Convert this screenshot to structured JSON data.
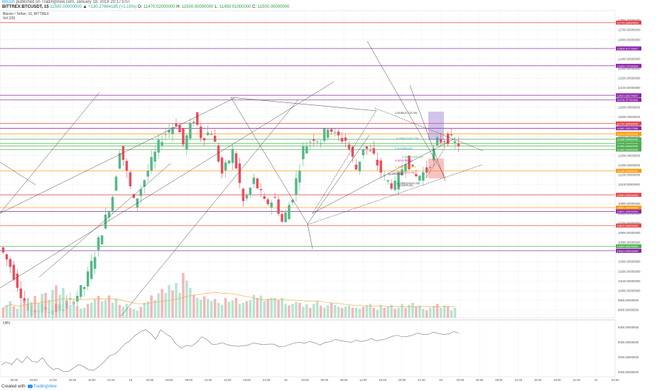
{
  "header": {
    "author": "Bitcoin",
    "published_text": "published on",
    "site": "TradingView.com",
    "date_text": ", January 19, 2018 20:17 EST",
    "symbol": "BITTREX:BTCUSDT, 15",
    "last_price": "11500.00000000",
    "change": "+130.27664185 (+1.15%)",
    "o": "11470.02000000",
    "h": "11500.00000000",
    "l": "11450.01000000",
    "c": "11500.00000000"
  },
  "legend": {
    "line1": "Bitcoin / Tether, 15, BITTREX",
    "line2": "Vol (20)"
  },
  "obv_label": "OBV",
  "footer": {
    "created_with": "Created with",
    "brand": "TradingView"
  },
  "colors": {
    "red": "#e5464a",
    "green": "#4caf50",
    "purple": "#8e24aa",
    "orange": "#ff9800",
    "grid": "#eeeeee"
  },
  "chart_data": [
    {
      "type": "candlestick",
      "title": "Bitcoin / Tether, 15, BITTREX",
      "ylim": [
        9720,
        12900
      ],
      "y_ticks": [
        "12800.00000000",
        "12700.00000000",
        "12600.00000000",
        "12500.00000000",
        "12400.00000000",
        "12300.00000000",
        "12200.00000000",
        "12100.00000000",
        "12000.00000000",
        "11900.00000000",
        "11800.00000000",
        "11700.00000000",
        "11600.00000000",
        "11500.00000000",
        "11400.00000000",
        "11300.00000000",
        "11200.00000000",
        "11100.00000000",
        "11000.00000000",
        "10900.00000000",
        "10800.00000000",
        "10700.00000000",
        "10600.00000000",
        "10500.00000000",
        "10400.00000000",
        "10300.00000000",
        "10200.00000000",
        "10100.00000000",
        "10000.00000000",
        "9900.00000000",
        "9800.00000000"
      ],
      "x_ticks": [
        "06:00",
        "09:00",
        "12:00",
        "15:00",
        "18:00",
        "21:00",
        "18",
        "03:00",
        "06:00",
        "09:00",
        "12:00",
        "15:00",
        "18:00",
        "21:00",
        "19",
        "03:00",
        "06:00",
        "09:00",
        "12:00",
        "15:00",
        "18:00",
        "21:00",
        "20",
        "03:00",
        "06:00",
        "09:00",
        "12:00",
        "15:00",
        "18:00",
        "21:00",
        "21",
        "03:00"
      ],
      "price_levels": [
        {
          "label": "12776.33684993",
          "value": 12776.34,
          "color": "#e5464a"
        },
        {
          "label": "12508.91775907",
          "value": 12508.92,
          "color": "#8e24aa"
        },
        {
          "label": "12328.73796393",
          "value": 12328.74,
          "color": "#8e24aa"
        },
        {
          "label": "12023.40279007",
          "value": 12023.4,
          "color": "#8e24aa"
        },
        {
          "label": "11976.37700304",
          "value": 11976.38,
          "color": "#8e24aa"
        },
        {
          "label": "11732.00000000",
          "value": 11732.0,
          "color": "#e5464a"
        },
        {
          "label": "11682.28317968",
          "value": 11682.28,
          "color": "#8e24aa"
        },
        {
          "label": "11625.00000000",
          "value": 11625.0,
          "color": "#ff9800"
        },
        {
          "label": "11568.00000000",
          "value": 11568.0,
          "color": "#4caf50"
        },
        {
          "label": "11525.00000000",
          "value": 11525.0,
          "color": "#4caf50"
        },
        {
          "label": "11500.00000000",
          "value": 11500.0,
          "color": "#4caf50"
        },
        {
          "label": "11462.00000000",
          "value": 11462.0,
          "color": "#4caf50"
        },
        {
          "label": "11242.00000000",
          "value": 11242.0,
          "color": "#ff9800"
        },
        {
          "label": "10993.00000000",
          "value": 10993.0,
          "color": "#e5464a"
        },
        {
          "label": "10861.00000000",
          "value": 10861.0,
          "color": "#ff9800"
        },
        {
          "label": "10821.00000000",
          "value": 10821.0,
          "color": "#8e24aa"
        },
        {
          "label": "10675.00000000",
          "value": 10675.0,
          "color": "#e5464a"
        },
        {
          "label": "10460.00000000",
          "value": 10460.0,
          "color": "#4caf50"
        },
        {
          "label": "10414.00000000",
          "value": 10414.0,
          "color": "#8e24aa"
        }
      ],
      "fib_labels": [
        "1.6180(11712.00)",
        "0.7860(11472.00)",
        "0.5(11389.00)",
        "0.382(11325.00)",
        "0.5(11278.00)",
        "0.382(11240.00)",
        "0(10993.00)",
        "-0.2360(11201.00)",
        "-0.2360(11101.00)",
        "0(10993.00)"
      ]
    },
    {
      "type": "bar",
      "title": "Vol (20)",
      "values": [
        20,
        26,
        33,
        23,
        18,
        24,
        35,
        40,
        31,
        44,
        29,
        48,
        50,
        36,
        56,
        65,
        46,
        60,
        36,
        26,
        32,
        23,
        18,
        20,
        28,
        30,
        38,
        44,
        33,
        36,
        45,
        30,
        39,
        26,
        22,
        28,
        20,
        17,
        14,
        22,
        30,
        33,
        45,
        36,
        49,
        58,
        50,
        66,
        55,
        70,
        50,
        90,
        75,
        60,
        46,
        40,
        36,
        43,
        38,
        34,
        38,
        30,
        26,
        40,
        32,
        35,
        40,
        28,
        30,
        33,
        36,
        46,
        40,
        45,
        34,
        38,
        40,
        40,
        35,
        40,
        28,
        25,
        28,
        32,
        30,
        22,
        27,
        20,
        28,
        33,
        24,
        20,
        25,
        30,
        26,
        22,
        20,
        23,
        25,
        20,
        20,
        18,
        22,
        25,
        28,
        20,
        16,
        26,
        20,
        22,
        26,
        18,
        20,
        28,
        20,
        26,
        30,
        22,
        25,
        18,
        15,
        20,
        24,
        28,
        20,
        25,
        22,
        15,
        20
      ]
    },
    {
      "type": "line",
      "title": "OBV",
      "y_ticks": [
        "6000.00000000",
        "5000.00000000",
        "4000.00000000",
        "3000.00000000"
      ],
      "ylim": [
        2700,
        6500
      ],
      "values": [
        3500,
        3680,
        3520,
        3920,
        3640,
        4040,
        3720,
        3680,
        3980,
        3480,
        3200,
        3260,
        3060,
        3040,
        3280,
        3520,
        3380,
        3160,
        3140,
        3400,
        3700,
        4100,
        4200,
        4500,
        4900,
        5100,
        5450,
        5700,
        5850,
        5620,
        5200,
        5850,
        5560,
        5360,
        4880,
        4620,
        4800,
        4740,
        5000,
        5380,
        5180,
        4860,
        4880,
        4960,
        4840,
        4760,
        4740,
        4760,
        4820,
        4960,
        4900,
        4840,
        4880,
        4880,
        4700,
        4720,
        4840,
        4960,
        5000,
        4940,
        5060,
        4960,
        4820,
        5000,
        5040,
        5200,
        5120,
        5060,
        5000,
        5140,
        5060,
        5120,
        5240,
        5100,
        5180,
        5240,
        5400,
        5480,
        5360,
        5400,
        5480,
        5620,
        5520,
        5520,
        5680,
        5600,
        5520,
        5560,
        5720,
        5620
      ]
    }
  ]
}
